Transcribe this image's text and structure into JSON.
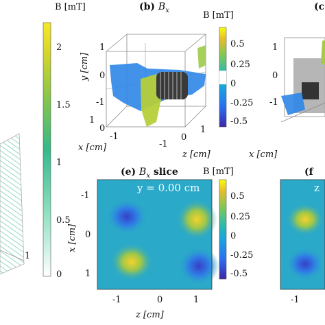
{
  "panel_a": {
    "colorbar_label": "B [mT]",
    "colorbar_ticks": [
      "2",
      "1.5",
      "1",
      "0.5",
      "0"
    ],
    "x_tick": "1",
    "colormap": [
      "#ffffff",
      "#9ee6c8",
      "#3fbf8a",
      "#7fc84a",
      "#d9d82a",
      "#f2e62a"
    ]
  },
  "panel_b": {
    "title_letter": "(b)",
    "title_var": "B",
    "title_sub": "x",
    "colorbar_label": "B [mT]",
    "colorbar_ticks": [
      "0.5",
      "0.25",
      "0",
      "-0.25",
      "-0.5"
    ],
    "y_label": "y [cm]",
    "y_ticks": [
      "1",
      "0",
      "-1"
    ],
    "x_label": "x [cm]",
    "x_ticks": [
      "1",
      "0",
      "-1"
    ],
    "z_label": "z [cm]",
    "z_ticks": [
      "-1",
      "0",
      "1"
    ]
  },
  "panel_c": {
    "title_letter": "(c",
    "y_ticks": [
      "1",
      "0",
      "-1"
    ],
    "x_label": "x [cm]"
  },
  "panel_e": {
    "title_letter": "(e)",
    "title_var": "B",
    "title_sub": "x",
    "title_rest": "slice",
    "slice_label": "y = 0.00 cm",
    "colorbar_label": "B [mT]",
    "colorbar_ticks": [
      "0.5",
      "0.25",
      "0",
      "-0.25",
      "-0.5"
    ],
    "y_label": "x [cm]",
    "y_ticks": [
      "-1",
      "0",
      "1"
    ],
    "x_label": "z [cm]",
    "x_ticks": [
      "-1",
      "0",
      "1"
    ]
  },
  "panel_f": {
    "title_letter": "(f",
    "slice_label": "z",
    "x_tick": "-1"
  },
  "colors": {
    "parula_low": "#3e26a8",
    "parula_mid": "#2db7b3",
    "parula_high": "#f9fb0e",
    "field_bg": "#2aa9c9"
  }
}
